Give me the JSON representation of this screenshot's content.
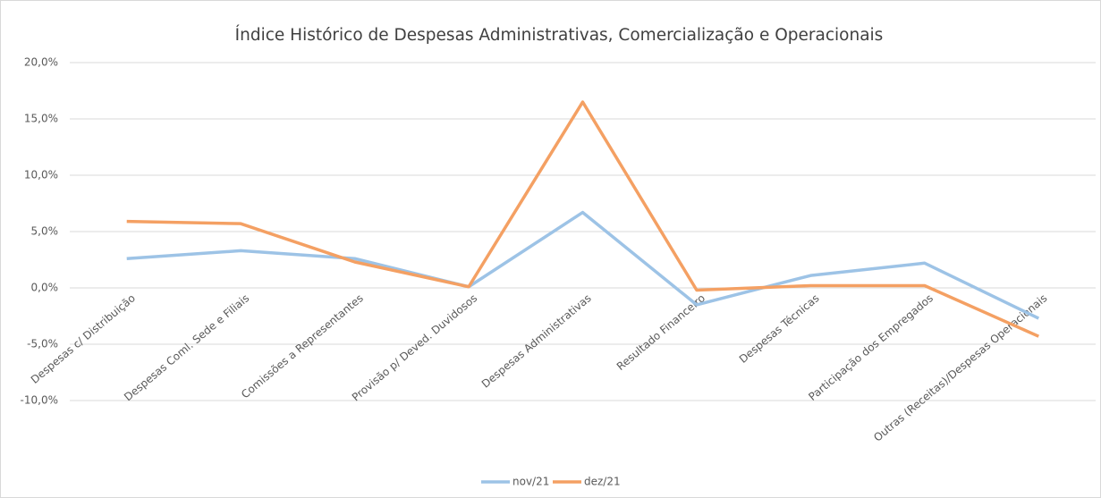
{
  "chart_data": {
    "type": "line",
    "title": "Índice Histórico de Despesas Administrativas, Comercialização e Operacionais",
    "categories": [
      "Despesas c/ Distribuição",
      "Despesas Coml. Sede e Filiais",
      "Comissões a Representantes",
      "Provisão p/ Deved. Duvidosos",
      "Despesas  Administrativas",
      "Resultado Financeiro",
      "Despesas  Técnicas",
      "Participação dos Empregados",
      "Outras (Receitas)/Despesas Operacionais"
    ],
    "series": [
      {
        "name": "nov/21",
        "color": "#9dc3e6",
        "values": [
          2.6,
          3.3,
          2.6,
          0.1,
          6.7,
          -1.5,
          1.1,
          2.2,
          -2.7
        ]
      },
      {
        "name": "dez/21",
        "color": "#f4a063",
        "values": [
          5.9,
          5.7,
          2.3,
          0.1,
          16.5,
          -0.2,
          0.2,
          0.2,
          -4.3
        ]
      }
    ],
    "ylim": [
      -10,
      20
    ],
    "yticks": [
      {
        "value": -10,
        "label": "-10,0%"
      },
      {
        "value": -5,
        "label": "-5,0%"
      },
      {
        "value": 0,
        "label": "0,0%"
      },
      {
        "value": 5,
        "label": "5,0%"
      },
      {
        "value": 10,
        "label": "10,0%"
      },
      {
        "value": 15,
        "label": "15,0%"
      },
      {
        "value": 20,
        "label": "20,0%"
      }
    ],
    "grid": true,
    "legend": "bottom"
  }
}
